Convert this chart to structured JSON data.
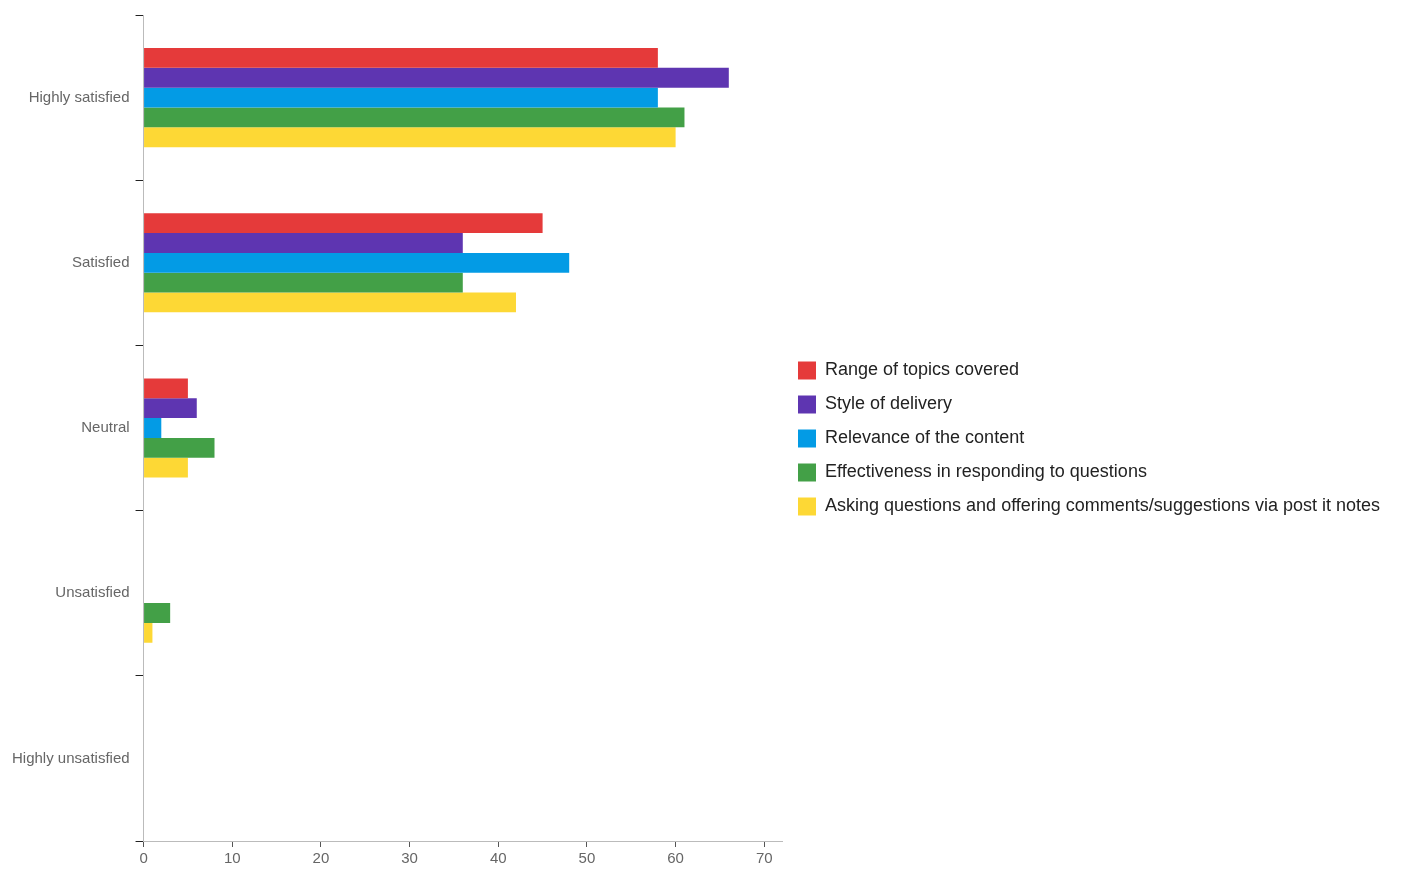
{
  "chart_data": {
    "type": "bar",
    "orientation": "horizontal",
    "categories": [
      "Highly satisfied",
      "Satisfied",
      "Neutral",
      "Unsatisfied",
      "Highly unsatisfied"
    ],
    "series": [
      {
        "name": "Range of topics covered",
        "color": "#e53a3a",
        "values": [
          58,
          45,
          5,
          0,
          0
        ]
      },
      {
        "name": "Style of delivery",
        "color": "#5e35b1",
        "values": [
          66,
          36,
          6,
          0,
          0
        ]
      },
      {
        "name": "Relevance of the content",
        "color": "#039be5",
        "values": [
          58,
          48,
          2,
          0,
          0
        ]
      },
      {
        "name": "Effectiveness in responding to questions",
        "color": "#43a047",
        "values": [
          61,
          36,
          8,
          3,
          0
        ]
      },
      {
        "name": "Asking questions and offering comments/suggestions via post it notes",
        "color": "#fdd835",
        "values": [
          60,
          42,
          5,
          1,
          0
        ]
      }
    ],
    "xlim": [
      0,
      72
    ],
    "xticks": [
      0,
      10,
      20,
      30,
      40,
      50,
      60,
      70
    ],
    "grid": false,
    "legend": "right"
  }
}
